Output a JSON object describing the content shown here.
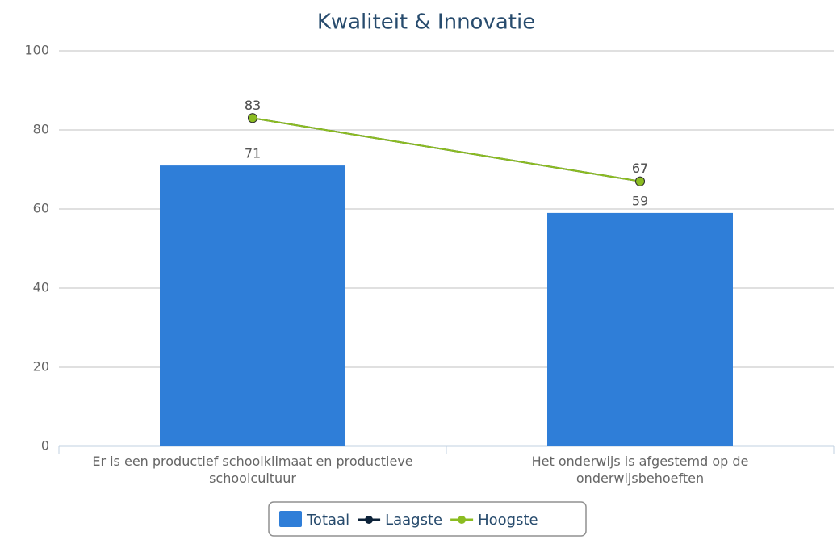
{
  "chart_data": {
    "type": "bar",
    "title": "Kwaliteit & Innovatie",
    "categories": [
      "Er is een productief schoolklimaat en productieve schoolcultuur",
      "Het onderwijs is afgestemd op de onderwijsbehoeften"
    ],
    "series": [
      {
        "name": "Totaal",
        "type": "bar",
        "color": "#2f7ed8",
        "values": [
          71,
          59
        ]
      },
      {
        "name": "Laagste",
        "type": "line",
        "color": "#0d233a",
        "values": [
          83,
          67
        ]
      },
      {
        "name": "Hoogste",
        "type": "line",
        "color": "#8bbc21",
        "values": [
          83,
          67
        ]
      }
    ],
    "ylim": [
      0,
      100
    ],
    "yticks": [
      0,
      20,
      40,
      60,
      80,
      100
    ],
    "grid": true
  }
}
